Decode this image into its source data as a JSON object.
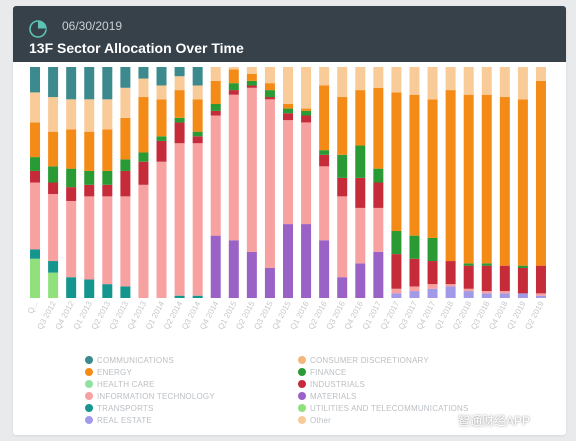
{
  "header": {
    "date": "06/30/2019",
    "title": "13F Sector Allocation Over Time"
  },
  "watermark": "智通财经APP",
  "chart_data": {
    "type": "bar",
    "stacked": true,
    "normalized": true,
    "title": "13F Sector Allocation Over Time",
    "ylim": [
      0,
      100
    ],
    "categories": [
      "Q...",
      "Q3 2012",
      "Q4 2012",
      "Q1 2013",
      "Q2 2013",
      "Q3 2013",
      "Q4 2013",
      "Q1 2014",
      "Q2 2014",
      "Q3 2014",
      "Q4 2014",
      "Q1 2015",
      "Q2 2015",
      "Q3 2015",
      "Q4 2015",
      "Q1 2016",
      "Q2 2016",
      "Q3 2016",
      "Q4 2016",
      "Q1 2017",
      "Q2 2017",
      "Q3 2017",
      "Q4 2017",
      "Q1 2018",
      "Q2 2018",
      "Q3 2018",
      "Q4 2018",
      "Q1 2019",
      "Q2 2019"
    ],
    "legend_position": "bottom",
    "series": [
      {
        "name": "UTILITIES AND TELECOMMUNICATIONS",
        "color": "#90e07c",
        "values": [
          17,
          11,
          0,
          0,
          0,
          0,
          0,
          0,
          0,
          0,
          0,
          0,
          0,
          0,
          0,
          0,
          0,
          0,
          0,
          0,
          0,
          0,
          0,
          0,
          0,
          0,
          0,
          0,
          0
        ]
      },
      {
        "name": "TRANSPORTS",
        "color": "#14958e",
        "values": [
          4,
          5,
          9,
          8,
          6,
          5,
          0,
          0,
          1,
          1,
          0,
          0,
          0,
          0,
          0,
          0,
          0,
          0,
          0,
          0,
          0,
          0,
          0,
          0,
          0,
          0,
          0,
          0,
          0
        ]
      },
      {
        "name": "REAL ESTATE",
        "color": "#a19ae8",
        "values": [
          0,
          0,
          0,
          0,
          0,
          0,
          0,
          0,
          0,
          0,
          0,
          0,
          0,
          0,
          0,
          0,
          0,
          0,
          0,
          0,
          2,
          3,
          4,
          5,
          3,
          2,
          2,
          2,
          1
        ]
      },
      {
        "name": "MATERIALS",
        "color": "#9a62c6",
        "values": [
          0,
          0,
          0,
          0,
          0,
          0,
          0,
          0,
          0,
          0,
          27,
          25,
          20,
          13,
          32,
          32,
          25,
          9,
          15,
          20,
          0,
          0,
          0,
          0,
          0,
          0,
          0,
          0,
          0
        ]
      },
      {
        "name": "INFORMATION TECHNOLOGY",
        "color": "#f7a1a1",
        "values": [
          29,
          29,
          33,
          36,
          38,
          39,
          49,
          59,
          66,
          66,
          52,
          63,
          71,
          73,
          45,
          44,
          32,
          35,
          24,
          19,
          2,
          2,
          2,
          1,
          1,
          1,
          1,
          0,
          1
        ]
      },
      {
        "name": "INDUSTRIALS",
        "color": "#c62b3a",
        "values": [
          5,
          5,
          6,
          5,
          5,
          11,
          10,
          9,
          9,
          3,
          2,
          2,
          1,
          1,
          3,
          3,
          5,
          8,
          13,
          11,
          15,
          12,
          10,
          10,
          10,
          11,
          11,
          11,
          12
        ]
      },
      {
        "name": "FINANCE",
        "color": "#2a9a34",
        "values": [
          6,
          7,
          8,
          6,
          6,
          5,
          4,
          2,
          2,
          2,
          3,
          3,
          2,
          3,
          2,
          2,
          2,
          10,
          14,
          6,
          10,
          10,
          10,
          0,
          1,
          1,
          0,
          1,
          0
        ]
      },
      {
        "name": "ENERGY",
        "color": "#f58b17",
        "values": [
          15,
          15,
          17,
          17,
          18,
          18,
          24,
          16,
          12,
          14,
          10,
          6,
          3,
          3,
          2,
          1,
          28,
          25,
          24,
          35,
          60,
          61,
          60,
          74,
          73,
          73,
          73,
          72,
          80
        ]
      },
      {
        "name": "Other",
        "color": "#f8cb99",
        "values": [
          13,
          15,
          13,
          14,
          13,
          13,
          8,
          6,
          6,
          6,
          6,
          1,
          3,
          7,
          16,
          18,
          8,
          13,
          10,
          9,
          11,
          12,
          14,
          10,
          12,
          12,
          13,
          14,
          6
        ]
      },
      {
        "name": "COMMUNICATIONS",
        "color": "#3d8a8e",
        "values": [
          11,
          13,
          14,
          14,
          14,
          9,
          5,
          8,
          4,
          8,
          0,
          0,
          0,
          0,
          0,
          0,
          0,
          0,
          0,
          0,
          0,
          0,
          0,
          0,
          0,
          0,
          0,
          0,
          0
        ]
      },
      {
        "name": "CONSUMER DISCRETIONARY",
        "color": "#f5b57e",
        "values": [
          0,
          0,
          0,
          0,
          0,
          0,
          0,
          0,
          0,
          0,
          0,
          0,
          0,
          0,
          0,
          0,
          0,
          0,
          0,
          0,
          0,
          0,
          0,
          0,
          0,
          0,
          0,
          0,
          0
        ]
      },
      {
        "name": "HEALTH CARE",
        "color": "#8fe3a0",
        "values": [
          0,
          0,
          0,
          0,
          0,
          0,
          0,
          0,
          0,
          0,
          0,
          0,
          0,
          0,
          0,
          0,
          0,
          0,
          0,
          0,
          0,
          0,
          0,
          0,
          0,
          0,
          0,
          0,
          0
        ]
      }
    ]
  },
  "legend": {
    "left": [
      {
        "label": "COMMUNICATIONS",
        "color": "#3d8a8e"
      },
      {
        "label": "ENERGY",
        "color": "#f58b17"
      },
      {
        "label": "HEALTH CARE",
        "color": "#8fe3a0"
      },
      {
        "label": "INFORMATION TECHNOLOGY",
        "color": "#f7a1a1"
      },
      {
        "label": "TRANSPORTS",
        "color": "#14958e"
      },
      {
        "label": "REAL ESTATE",
        "color": "#a19ae8"
      }
    ],
    "right": [
      {
        "label": "CONSUMER DISCRETIONARY",
        "color": "#f5b57e"
      },
      {
        "label": "FINANCE",
        "color": "#2a9a34"
      },
      {
        "label": "INDUSTRIALS",
        "color": "#c62b3a"
      },
      {
        "label": "MATERIALS",
        "color": "#9a62c6"
      },
      {
        "label": "UTILITIES AND TELECOMMUNICATIONS",
        "color": "#90e07c"
      },
      {
        "label": "Other",
        "color": "#f8cb99"
      }
    ]
  }
}
